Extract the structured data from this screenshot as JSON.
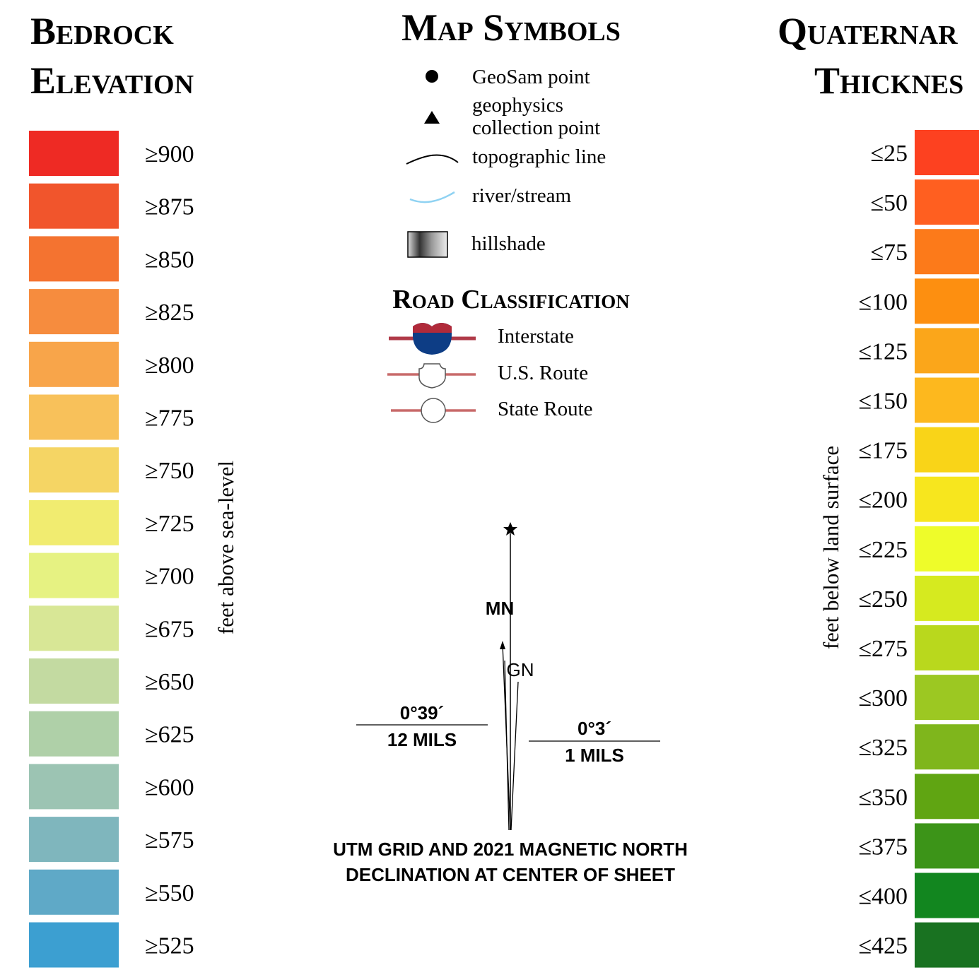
{
  "bedrock": {
    "title_lines": [
      "Bedrock",
      "Elevation"
    ],
    "axis_label": "feet above sea-level",
    "items": [
      {
        "label": "≥900",
        "color": "#ee2a24"
      },
      {
        "label": "≥875",
        "color": "#f1552c"
      },
      {
        "label": "≥850",
        "color": "#f47330"
      },
      {
        "label": "≥825",
        "color": "#f68c3e"
      },
      {
        "label": "≥800",
        "color": "#f8a54a"
      },
      {
        "label": "≥775",
        "color": "#f8c15a"
      },
      {
        "label": "≥750",
        "color": "#f5d564"
      },
      {
        "label": "≥725",
        "color": "#f1ec70"
      },
      {
        "label": "≥700",
        "color": "#e6f282"
      },
      {
        "label": "≥675",
        "color": "#d8e796"
      },
      {
        "label": "≥650",
        "color": "#c3daa1"
      },
      {
        "label": "≥625",
        "color": "#afd0a8"
      },
      {
        "label": "≥600",
        "color": "#9cc4b3"
      },
      {
        "label": "≥575",
        "color": "#7fb6bd"
      },
      {
        "label": "≥550",
        "color": "#5fa9c7"
      },
      {
        "label": "≥525",
        "color": "#3c9fd1"
      }
    ]
  },
  "quaternary": {
    "title_lines": [
      "Quaternar",
      "Thicknes"
    ],
    "axis_label": "feet below land surface",
    "items": [
      {
        "label": "≤25",
        "color": "#fd4120"
      },
      {
        "label": "≤50",
        "color": "#ff5f20"
      },
      {
        "label": "≤75",
        "color": "#fc7a1a"
      },
      {
        "label": "≤100",
        "color": "#fd8f10"
      },
      {
        "label": "≤125",
        "color": "#fba61a"
      },
      {
        "label": "≤150",
        "color": "#fdb81e"
      },
      {
        "label": "≤175",
        "color": "#f9d418"
      },
      {
        "label": "≤200",
        "color": "#f7e61e"
      },
      {
        "label": "≤225",
        "color": "#eefc2a"
      },
      {
        "label": "≤250",
        "color": "#d6ea1f"
      },
      {
        "label": "≤275",
        "color": "#b9d81d"
      },
      {
        "label": "≤300",
        "color": "#9cc822"
      },
      {
        "label": "≤325",
        "color": "#7fb61c"
      },
      {
        "label": "≤350",
        "color": "#60a512"
      },
      {
        "label": "≤375",
        "color": "#3c9418"
      },
      {
        "label": "≤400",
        "color": "#12861f"
      },
      {
        "label": "≤425",
        "color": "#197221"
      }
    ]
  },
  "map_symbols": {
    "title": "Map Symbols",
    "items": [
      "GeoSam point",
      "geophysics",
      "collection point",
      "topographic line",
      "river/stream",
      "hillshade"
    ]
  },
  "road_classification": {
    "title": "Road Classification",
    "items": [
      "Interstate",
      "U.S. Route",
      "State Route"
    ]
  },
  "declination": {
    "mn": "MN",
    "gn": "GN",
    "left_angle": "0°39´",
    "left_mils": "12 MILS",
    "right_angle": "0°3´",
    "right_mils": "1 MILS",
    "caption_lines": [
      "UTM GRID AND 2021 MAGNETIC NORTH",
      "DECLINATION AT CENTER OF SHEET"
    ]
  }
}
